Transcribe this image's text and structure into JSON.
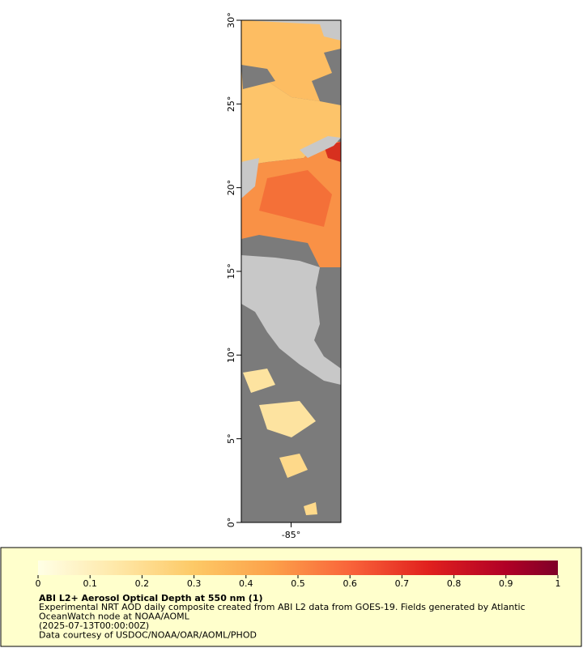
{
  "map": {
    "lat_range": [
      0,
      30
    ],
    "lat_ticks": [
      {
        "value": 0,
        "label": "0°"
      },
      {
        "value": 5,
        "label": "5°"
      },
      {
        "value": 10,
        "label": "10°"
      },
      {
        "value": 15,
        "label": "15°"
      },
      {
        "value": 20,
        "label": "20°"
      },
      {
        "value": 25,
        "label": "25°"
      },
      {
        "value": 30,
        "label": "30°"
      }
    ],
    "lon_range": [
      -86.5,
      -83.5
    ],
    "lon_ticks": [
      {
        "value": -85,
        "label": "-85°"
      }
    ]
  },
  "colorbar": {
    "range": [
      0,
      1
    ],
    "ticks": [
      0,
      0.1,
      0.2,
      0.3,
      0.4,
      0.5,
      0.6,
      0.7,
      0.8,
      0.9,
      1
    ]
  },
  "legend": {
    "title": "ABI L2+ Aerosol Optical Depth at 550 nm (1)",
    "lines": [
      "Experimental NRT AOD daily composite created from ABI L2 data from GOES-19. Fields generated by Atlantic",
      "OceanWatch node at NOAA/AOML",
      "(2025-07-13T00:00:00Z)",
      "Data courtesy of USDOC/NOAA/OAR/AOML/PHOD"
    ]
  }
}
